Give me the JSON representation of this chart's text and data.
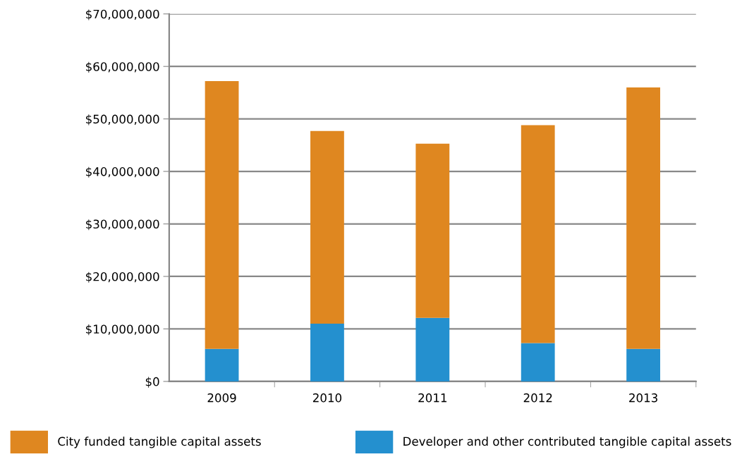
{
  "chart_data": {
    "type": "bar",
    "stacked": true,
    "categories": [
      "2009",
      "2010",
      "2011",
      "2012",
      "2013"
    ],
    "series": [
      {
        "name": "Developer and other contributed tangible capital assets",
        "color": "#2490cf",
        "values": [
          6200000,
          11000000,
          12100000,
          7300000,
          6200000
        ]
      },
      {
        "name": "City funded tangible capital assets",
        "color": "#df8720",
        "values": [
          51000000,
          36700000,
          33200000,
          41500000,
          49800000
        ]
      }
    ],
    "ylim": [
      0,
      70000000
    ],
    "yticks": [
      {
        "value": 0,
        "label": "$0"
      },
      {
        "value": 10000000,
        "label": "$10,000,000"
      },
      {
        "value": 20000000,
        "label": "$20,000,000"
      },
      {
        "value": 30000000,
        "label": "$30,000,000"
      },
      {
        "value": 40000000,
        "label": "$40,000,000"
      },
      {
        "value": 50000000,
        "label": "$50,000,000"
      },
      {
        "value": 60000000,
        "label": "$60,000,000"
      },
      {
        "value": 70000000,
        "label": "$70,000,000"
      }
    ],
    "grid": "y",
    "legend": "bottom"
  }
}
